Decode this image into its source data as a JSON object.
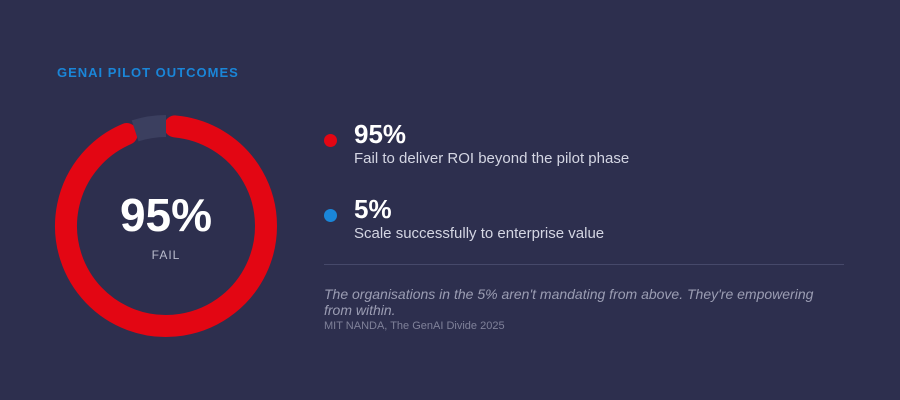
{
  "chart_data": {
    "type": "donut",
    "title": "GENAI PILOT OUTCOMES",
    "categories": [
      "Fail to deliver ROI beyond the pilot phase",
      "Scale successfully to enterprise value"
    ],
    "values": [
      95,
      5
    ],
    "value_labels": [
      "95%",
      "5%"
    ],
    "colors": [
      "#e30613",
      "#1a86d8"
    ],
    "ring_colors": [
      "#e30613",
      "#3b3f5f"
    ],
    "center_label": "FAIL",
    "quote": "The organisations in the 5% aren't mandating from above. They're empowering from within.",
    "source": "MIT NANDA, The GenAI Divide 2025"
  }
}
